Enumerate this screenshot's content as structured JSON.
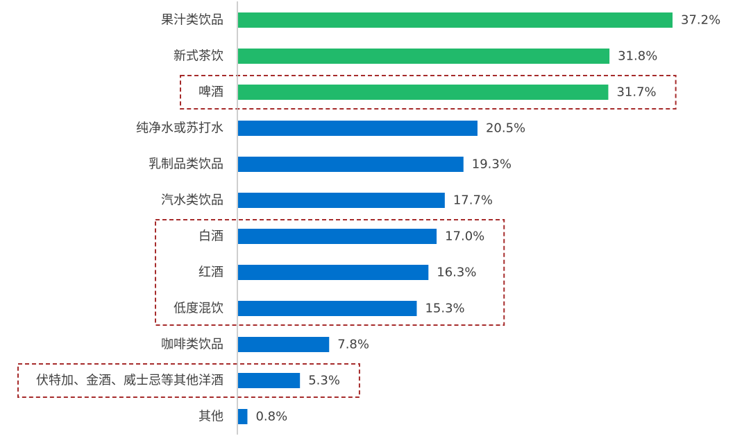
{
  "chart_data": {
    "type": "bar",
    "orientation": "horizontal",
    "categories": [
      "果汁类饮品",
      "新式茶饮",
      "啤酒",
      "纯净水或苏打水",
      "乳制品类饮品",
      "汽水类饮品",
      "白酒",
      "红酒",
      "低度混饮",
      "咖啡类饮品",
      "伏特加、金酒、威士忌等其他洋酒",
      "其他"
    ],
    "values": [
      37.2,
      31.8,
      31.7,
      20.5,
      19.3,
      17.7,
      17.0,
      16.3,
      15.3,
      7.8,
      5.3,
      0.8
    ],
    "value_labels": [
      "37.2%",
      "31.8%",
      "31.7%",
      "20.5%",
      "19.3%",
      "17.7%",
      "17.0%",
      "16.3%",
      "15.3%",
      "7.8%",
      "5.3%",
      "0.8%"
    ],
    "bar_colors": [
      "#21BA6B",
      "#21BA6B",
      "#21BA6B",
      "#0071CE",
      "#0071CE",
      "#0071CE",
      "#0071CE",
      "#0071CE",
      "#0071CE",
      "#0071CE",
      "#0071CE",
      "#0071CE"
    ],
    "highlight_groups": [
      [
        "啤酒"
      ],
      [
        "白酒",
        "红酒",
        "低度混饮"
      ],
      [
        "伏特加、金酒、威士忌等其他洋酒"
      ]
    ],
    "highlight_color": "#A62B2B",
    "axis_line_color": "#BFBFBF",
    "title": "",
    "xlabel": "",
    "ylabel": "",
    "xlim": [
      0,
      37.2
    ],
    "grid": false,
    "legend": "none"
  }
}
